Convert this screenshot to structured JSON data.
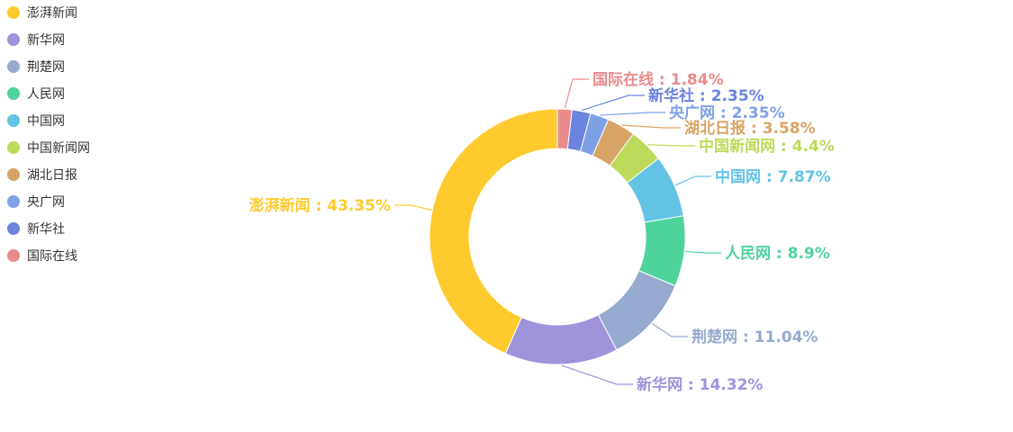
{
  "chart_data": {
    "type": "pie",
    "variant": "donut",
    "legend_position": "top-left",
    "legend_orient": "vertical",
    "slices": [
      {
        "name": "澎湃新闻",
        "value": 43.35,
        "label": "澎湃新闻 : 43.35%",
        "color": "#ffca2e"
      },
      {
        "name": "新华网",
        "value": 14.32,
        "label": "新华网 : 14.32%",
        "color": "#9f93dc"
      },
      {
        "name": "荆楚网",
        "value": 11.04,
        "label": "荆楚网 : 11.04%",
        "color": "#96a9ce"
      },
      {
        "name": "人民网",
        "value": 8.9,
        "label": "人民网 : 8.9%",
        "color": "#4fd39d"
      },
      {
        "name": "中国网",
        "value": 7.87,
        "label": "中国网 : 7.87%",
        "color": "#63c3e5"
      },
      {
        "name": "中国新闻网",
        "value": 4.4,
        "label": "中国新闻网 : 4.4%",
        "color": "#bdda5a"
      },
      {
        "name": "湖北日报",
        "value": 3.58,
        "label": "湖北日报 : 3.58%",
        "color": "#d8a465"
      },
      {
        "name": "央广网",
        "value": 2.35,
        "label": "央广网 : 2.35%",
        "color": "#7ea1e6"
      },
      {
        "name": "新华社",
        "value": 2.35,
        "label": "新华社 : 2.35%",
        "color": "#6a84df"
      },
      {
        "name": "国际在线",
        "value": 1.84,
        "label": "国际在线 : 1.84%",
        "color": "#e98b8b"
      }
    ]
  }
}
